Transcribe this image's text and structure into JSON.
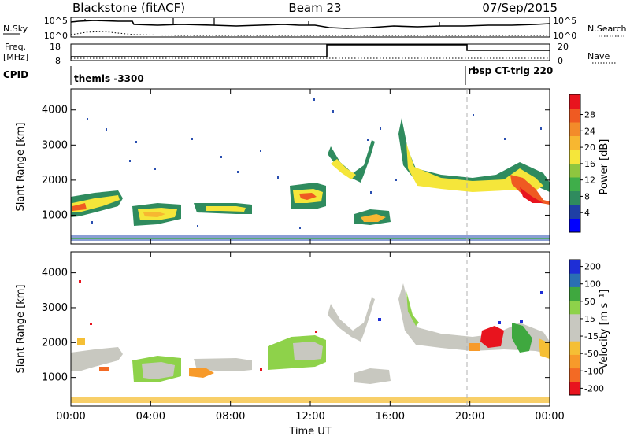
{
  "header": {
    "station": "Blackstone (fitACF)",
    "beam": "Beam 23",
    "date": "07/Sep/2015"
  },
  "top_panels": {
    "nsky_label": "N.Sky",
    "nsky_ticks": [
      "10^5",
      "10^0"
    ],
    "nsearch_label": "N.Search",
    "freq_label": "Freq.",
    "freq_unit": "[MHz]",
    "freq_ticks": [
      "18",
      "8"
    ],
    "nave_label": "Nave",
    "nave_ticks": [
      "20",
      "0"
    ],
    "cpid_label": "CPID",
    "cpid_segments": [
      "themis -3300",
      "rbsp CT-trig 220"
    ]
  },
  "colors": {
    "power_scale": [
      "#0000ff",
      "#1f3fa5",
      "#2f8b5e",
      "#3fae4a",
      "#8ec63f",
      "#f5e63a",
      "#f7b731",
      "#f38b2a",
      "#ef5a22",
      "#e8141e"
    ],
    "velocity_scale": [
      "#e8141e",
      "#f36a24",
      "#f79a2a",
      "#f5bf35",
      "#c8c8c0",
      "#c8c8c0",
      "#8ed24a",
      "#3fa83f",
      "#2a6fb3",
      "#1e2ed6"
    ]
  },
  "chart_data": [
    {
      "type": "line",
      "title": "N.Sky / N.Search",
      "x": [
        "00:00",
        "02:40",
        "05:00",
        "07:20",
        "10:00",
        "13:00",
        "15:00",
        "17:00",
        "19:00",
        "21:00",
        "23:59"
      ],
      "series": [
        {
          "name": "N.Sky",
          "values": [
            30000,
            25000,
            5000,
            8000,
            6000,
            3000,
            4000,
            4000,
            5000,
            5000,
            8000
          ]
        }
      ],
      "log_scale": true,
      "ylim": [
        1,
        100000
      ]
    },
    {
      "type": "line",
      "title": "Freq. / Nave",
      "x": [
        "00:00",
        "13:00",
        "13:00",
        "20:00",
        "20:00",
        "23:59"
      ],
      "series": [
        {
          "name": "Freq.",
          "values": [
            11,
            11,
            18,
            18,
            16,
            16
          ]
        },
        {
          "name": "Nave",
          "values": [
            4,
            4,
            4,
            4,
            4,
            4
          ]
        }
      ],
      "ylim": [
        8,
        18
      ]
    },
    {
      "type": "heatmap",
      "title": "Power",
      "xlabel": "",
      "ylabel": "Slant Range [km]",
      "x_ticks": [
        "00:00",
        "04:00",
        "08:00",
        "12:00",
        "16:00",
        "20:00",
        "00:00"
      ],
      "y_ticks": [
        "1000",
        "2000",
        "3000",
        "4000"
      ],
      "ylim": [
        180,
        4600
      ],
      "colorbar_label": "Power [dB]",
      "colorbar_ticks": [
        "4",
        "8",
        "12",
        "16",
        "20",
        "24",
        "28"
      ],
      "features": [
        {
          "t": [
            0.0,
            2.7
          ],
          "r": [
            1000,
            1500
          ]
        },
        {
          "t": [
            3.4,
            5.6
          ],
          "r": [
            800,
            1200
          ]
        },
        {
          "t": [
            6.5,
            9.0
          ],
          "r": [
            1100,
            1300
          ]
        },
        {
          "t": [
            10.8,
            12.7
          ],
          "r": [
            1200,
            1700
          ]
        },
        {
          "t": [
            13.0,
            15.6
          ],
          "r": [
            1700,
            2700
          ]
        },
        {
          "t": [
            14.2,
            16.4
          ],
          "r": [
            700,
            900
          ]
        },
        {
          "t": [
            16.8,
            24.0
          ],
          "r": [
            1500,
            2300
          ]
        },
        {
          "t": [
            22.0,
            24.0
          ],
          "r": [
            1300,
            2000
          ]
        }
      ]
    },
    {
      "type": "heatmap",
      "title": "Velocity",
      "xlabel": "Time UT",
      "ylabel": "Slant Range [km]",
      "x_ticks": [
        "00:00",
        "04:00",
        "08:00",
        "12:00",
        "16:00",
        "20:00",
        "00:00"
      ],
      "y_ticks": [
        "1000",
        "2000",
        "3000",
        "4000"
      ],
      "ylim": [
        180,
        4600
      ],
      "colorbar_label": "Velocity [m s⁻¹]",
      "colorbar_ticks": [
        "200",
        "100",
        "50",
        "15",
        "-15",
        "-50",
        "-100",
        "-200"
      ]
    }
  ]
}
